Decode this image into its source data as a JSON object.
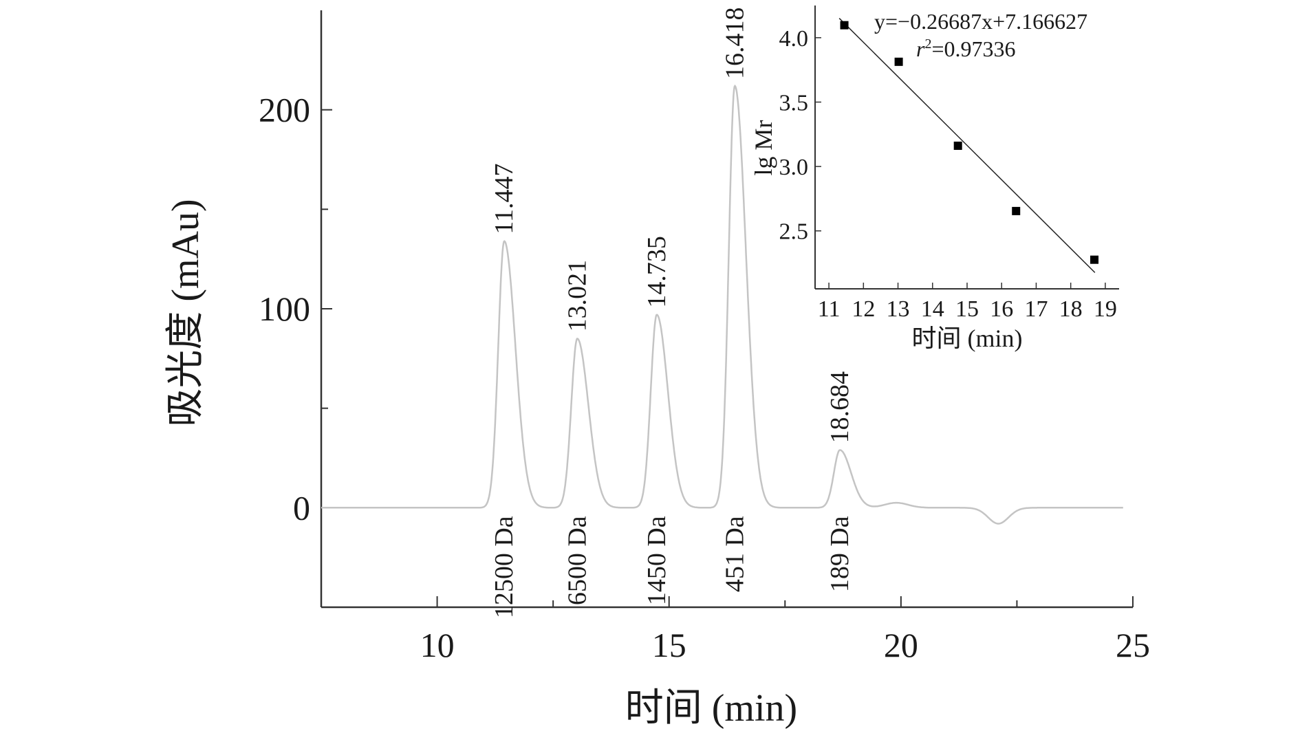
{
  "chart_data": [
    {
      "type": "line",
      "xlabel": "时间 (min)",
      "ylabel": "吸光度 (mAu)",
      "xlim": [
        7.5,
        25
      ],
      "ylim": [
        -50,
        250
      ],
      "xticks": [
        10,
        15,
        20,
        25
      ],
      "yticks": [
        0,
        100,
        200
      ],
      "line_color": "#c4c4c4",
      "baseline": 0,
      "peaks": [
        {
          "rt": 11.447,
          "rt_label": "11.447",
          "height": 134,
          "mass_label": "12500 Da"
        },
        {
          "rt": 13.021,
          "rt_label": "13.021",
          "height": 85,
          "mass_label": "6500 Da"
        },
        {
          "rt": 14.735,
          "rt_label": "14.735",
          "height": 97,
          "mass_label": "1450 Da"
        },
        {
          "rt": 16.418,
          "rt_label": "16.418",
          "height": 212,
          "mass_label": "451 Da"
        },
        {
          "rt": 18.684,
          "rt_label": "18.684",
          "height": 29,
          "mass_label": "189 Da"
        }
      ],
      "artifacts": [
        {
          "x": 19.9,
          "y": 2.5
        },
        {
          "x": 22.1,
          "y": -8
        }
      ]
    },
    {
      "type": "scatter",
      "xlabel": "时间 (min)",
      "ylabel": "lg Mr",
      "xlim": [
        10.6,
        19.4
      ],
      "ylim": [
        2.05,
        4.25
      ],
      "xticks": [
        11,
        12,
        13,
        14,
        15,
        16,
        17,
        18,
        19
      ],
      "yticks": [
        2.5,
        3.0,
        3.5,
        4.0
      ],
      "ytick_labels": [
        "2.5",
        "3.0",
        "3.5",
        "4.0"
      ],
      "points": [
        {
          "x": 11.447,
          "y": 4.097
        },
        {
          "x": 13.021,
          "y": 3.813
        },
        {
          "x": 14.735,
          "y": 3.161
        },
        {
          "x": 16.418,
          "y": 2.654
        },
        {
          "x": 18.684,
          "y": 2.276
        }
      ],
      "fit": {
        "slope": -0.26687,
        "intercept": 7.166627,
        "x_range": [
          11.3,
          18.7
        ]
      },
      "equation": "y=−0.26687x+7.166627",
      "r2_label": "r",
      "r2_exponent": "2",
      "r2_value": "=0.97336"
    }
  ]
}
